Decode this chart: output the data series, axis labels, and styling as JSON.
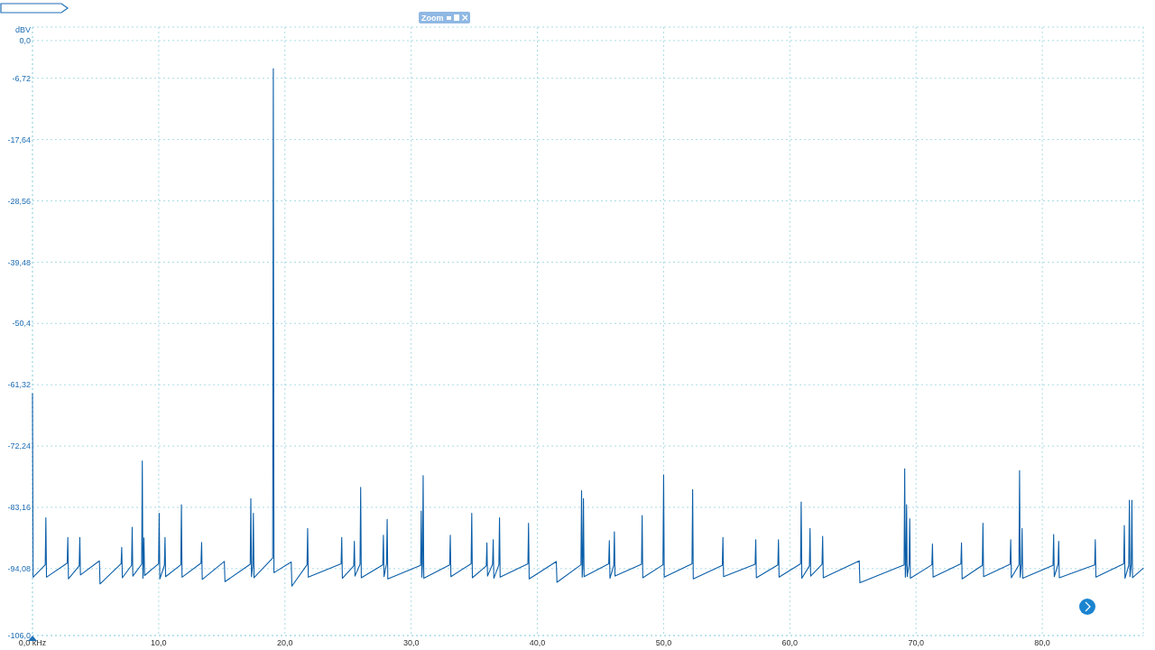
{
  "chart_data": {
    "type": "line",
    "ylabel": "dBV",
    "grid": true,
    "line_style": "solid",
    "annotations": [
      "Zoom"
    ],
    "xlim": [
      0,
      88
    ],
    "ylim": [
      -106,
      2.4
    ],
    "xticks": [
      {
        "value": 0,
        "label": "0,0 kHz"
      },
      {
        "value": 10,
        "label": "10,0"
      },
      {
        "value": 20,
        "label": "20,0"
      },
      {
        "value": 30,
        "label": "30,0"
      },
      {
        "value": 40,
        "label": "40,0"
      },
      {
        "value": 50,
        "label": "50,0"
      },
      {
        "value": 60,
        "label": "60,0"
      },
      {
        "value": 70,
        "label": "70,0"
      },
      {
        "value": 80,
        "label": "80,0"
      }
    ],
    "yticks": [
      {
        "value": 0,
        "label": "0,0"
      },
      {
        "value": -6.72,
        "label": "-6,72"
      },
      {
        "value": -17.64,
        "label": "-17,64"
      },
      {
        "value": -28.56,
        "label": "-28,56"
      },
      {
        "value": -39.48,
        "label": "-39,48"
      },
      {
        "value": -50.4,
        "label": "-50,4"
      },
      {
        "value": -61.32,
        "label": "-61,32"
      },
      {
        "value": -72.24,
        "label": "-72,24"
      },
      {
        "value": -83.16,
        "label": "-83,16"
      },
      {
        "value": -94.08,
        "label": "-94,08"
      },
      {
        "value": -106,
        "label": "-106,0"
      }
    ],
    "series": [
      {
        "color": "#0b5ea8",
        "x": [
          0,
          0.05,
          1.01,
          1.06,
          1.11,
          2.75,
          2.8,
          2.85,
          3.7,
          3.75,
          3.8,
          5.3,
          5.35,
          7.02,
          7.07,
          7.12,
          7.85,
          7.9,
          7.95,
          8.65,
          8.7,
          8.75,
          8.78,
          8.83,
          8.88,
          9.99,
          10.04,
          10.09,
          10.45,
          10.5,
          10.55,
          11.75,
          11.8,
          11.85,
          13.35,
          13.4,
          13.45,
          15.2,
          15.25,
          17.25,
          17.3,
          17.35,
          17.45,
          17.5,
          17.55,
          19.03,
          19.08,
          19.13,
          20.5,
          20.55,
          21.75,
          21.8,
          21.85,
          24.45,
          24.5,
          24.55,
          25.45,
          25.5,
          25.55,
          25.95,
          26.0,
          26.05,
          27.75,
          27.8,
          27.85,
          28.05,
          28.1,
          28.15,
          30.75,
          30.8,
          30.85,
          30.9,
          30.95,
          31.0,
          33.05,
          33.1,
          33.15,
          34.75,
          34.8,
          34.85,
          35.95,
          36.0,
          36.05,
          36.45,
          36.5,
          36.55,
          36.95,
          37.0,
          37.05,
          39.25,
          39.3,
          39.35,
          41.5,
          41.55,
          43.45,
          43.5,
          43.55,
          43.6,
          43.65,
          43.7,
          45.65,
          45.7,
          45.75,
          46.05,
          46.1,
          46.15,
          48.25,
          48.3,
          48.35,
          49.95,
          50.0,
          50.05,
          52.25,
          52.3,
          52.35,
          54.65,
          54.7,
          54.75,
          57.25,
          57.3,
          57.35,
          59.05,
          59.1,
          59.15,
          60.85,
          60.9,
          60.95,
          61.55,
          61.6,
          61.65,
          62.55,
          62.6,
          62.65,
          65.5,
          65.55,
          69.05,
          69.1,
          69.15,
          69.2,
          69.25,
          69.3,
          69.45,
          69.5,
          69.55,
          71.25,
          71.3,
          71.35,
          73.55,
          73.6,
          73.65,
          75.25,
          75.3,
          75.35,
          77.45,
          77.5,
          77.55,
          78.15,
          78.2,
          78.25,
          78.35,
          78.4,
          78.45,
          80.85,
          80.9,
          80.95,
          81.25,
          81.3,
          81.35,
          84.15,
          84.2,
          84.25,
          86.45,
          86.5,
          86.55,
          86.85,
          86.9,
          86.95,
          87.05,
          87.1,
          87.15,
          88.0
        ],
        "values": [
          -62.9,
          -95.6,
          -93.4,
          -85.0,
          -95.6,
          -93.1,
          -88.5,
          -95.9,
          -93.6,
          -88.5,
          -95.2,
          -92.7,
          -96.8,
          -93.2,
          -90.3,
          -95.7,
          -93.5,
          -86.7,
          -95.4,
          -93.3,
          -74.9,
          -95.8,
          -93.6,
          -88.6,
          -95.3,
          -93.2,
          -84.2,
          -95.9,
          -93.5,
          -88.5,
          -95.5,
          -93.4,
          -82.7,
          -95.6,
          -93.1,
          -89.4,
          -96.0,
          -92.8,
          -96.4,
          -93.3,
          -81.6,
          -95.5,
          -93.5,
          -84.2,
          -95.7,
          -92.2,
          -5.0,
          -94.8,
          -92.9,
          -97.2,
          -93.4,
          -86.9,
          -95.6,
          -93.2,
          -88.5,
          -95.8,
          -93.6,
          -89.2,
          -95.4,
          -93.3,
          -79.6,
          -95.7,
          -93.4,
          -88.1,
          -95.5,
          -93.2,
          -85.3,
          -95.9,
          -93.5,
          -83.8,
          -95.6,
          -93.3,
          -77.5,
          -95.8,
          -93.4,
          -88.1,
          -95.5,
          -93.2,
          -84.2,
          -95.7,
          -93.6,
          -89.5,
          -95.4,
          -93.3,
          -88.9,
          -95.8,
          -93.4,
          -85.0,
          -95.6,
          -93.2,
          -86.0,
          -95.9,
          -92.8,
          -96.5,
          -93.4,
          -80.2,
          -95.6,
          -93.5,
          -81.6,
          -95.5,
          -93.2,
          -89.1,
          -95.8,
          -93.5,
          -87.5,
          -95.4,
          -93.3,
          -84.6,
          -95.7,
          -93.4,
          -77.4,
          -95.6,
          -93.2,
          -80.0,
          -95.9,
          -93.5,
          -88.5,
          -95.5,
          -93.3,
          -88.9,
          -95.7,
          -93.4,
          -88.9,
          -95.6,
          -93.2,
          -82.2,
          -95.8,
          -93.6,
          -86.9,
          -95.4,
          -93.3,
          -88.3,
          -95.7,
          -92.7,
          -96.6,
          -93.4,
          -76.3,
          -95.6,
          -93.5,
          -82.7,
          -95.5,
          -93.3,
          -85.2,
          -95.8,
          -93.4,
          -89.7,
          -95.6,
          -93.2,
          -89.5,
          -95.9,
          -93.5,
          -86.0,
          -95.5,
          -93.3,
          -88.9,
          -95.7,
          -93.4,
          -76.6,
          -95.6,
          -93.2,
          -86.9,
          -95.8,
          -93.5,
          -88.0,
          -95.5,
          -93.3,
          -89.2,
          -95.7,
          -93.4,
          -88.9,
          -95.6,
          -93.2,
          -86.4,
          -95.8,
          -93.5,
          -81.9,
          -95.5,
          -93.3,
          -81.9,
          -95.7,
          -94.0
        ]
      }
    ]
  }
}
